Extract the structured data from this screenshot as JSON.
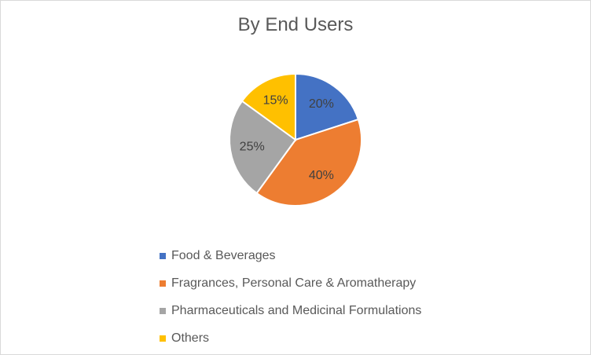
{
  "chart_data": {
    "type": "pie",
    "title": "By End Users",
    "categories": [
      "Food & Beverages",
      "Fragrances, Personal Care & Aromatherapy",
      "Pharmaceuticals and Medicinal Formulations",
      "Others"
    ],
    "values": [
      20,
      40,
      25,
      15
    ],
    "data_labels": [
      "20%",
      "40%",
      "25%",
      "15%"
    ],
    "colors": [
      "#4472C4",
      "#ED7D31",
      "#A5A5A5",
      "#FFC000"
    ],
    "legend_position": "bottom",
    "start_angle": "12 o'clock, clockwise"
  }
}
